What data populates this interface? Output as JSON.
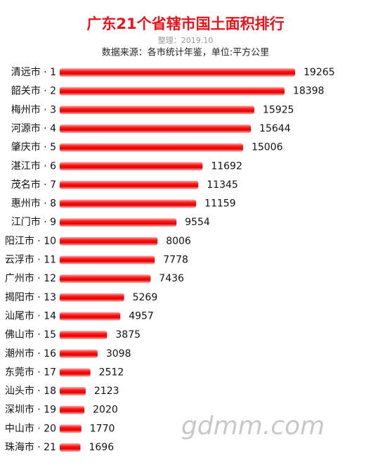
{
  "chart_data": {
    "type": "bar",
    "orientation": "horizontal",
    "title": "广东21个省辖市国土面积排行",
    "subtitle": "整理：2019.10",
    "source": "数据来源：各市统计年鉴，单位:平方公里",
    "watermark": "gdmm.com",
    "color": "#e8141b",
    "categories": [
      "清远市 · 1",
      "韶关市 · 2",
      "梅州市 · 3",
      "河源市 · 4",
      "肇庆市 · 5",
      "湛江市 · 6",
      "茂名市 · 7",
      "惠州市 · 8",
      "江门市 · 9",
      "阳江市 · 10",
      "云浮市 · 11",
      "广州市 · 12",
      "揭阳市 · 13",
      "汕尾市 · 14",
      "佛山市 · 15",
      "潮州市 · 16",
      "东莞市 · 17",
      "汕头市 · 18",
      "深圳市 · 19",
      "中山市 · 20",
      "珠海市 · 21"
    ],
    "values": [
      19265,
      18398,
      15925,
      15644,
      15006,
      11692,
      11345,
      11159,
      9554,
      8006,
      7778,
      7436,
      5269,
      4957,
      3875,
      3098,
      2512,
      2123,
      2020,
      1770,
      1696
    ]
  }
}
